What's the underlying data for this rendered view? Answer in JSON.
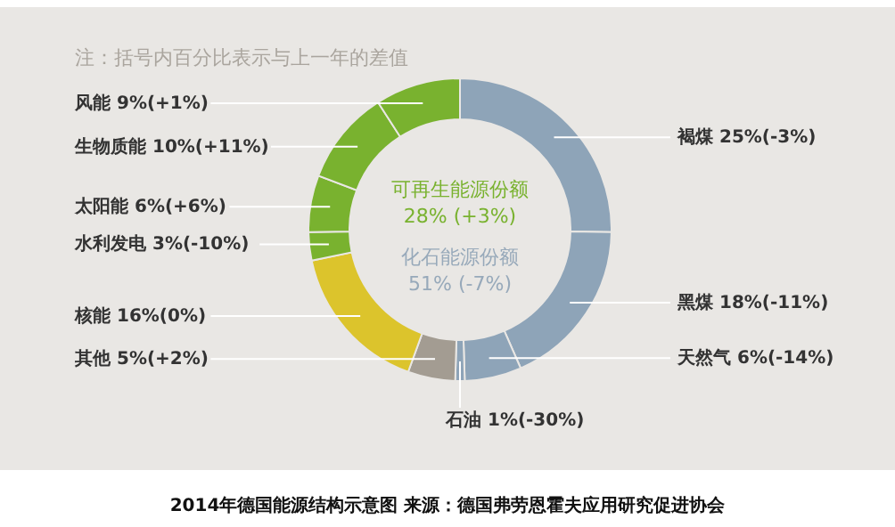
{
  "chart_data": {
    "type": "donut",
    "categories": [
      "褐煤",
      "黑煤",
      "天然气",
      "石油",
      "其他",
      "核能",
      "水利发电",
      "太阳能",
      "生物质能",
      "风能"
    ],
    "values": [
      25,
      18,
      6,
      1,
      5,
      16,
      3,
      6,
      10,
      9
    ],
    "value_labels": [
      "25%(-3%)",
      "18%(-11%)",
      "6%(-14%)",
      "1%(-30%)",
      "5%(+2%)",
      "16%(0%)",
      "3%(-10%)",
      "6%(+6%)",
      "10%(+11%)",
      "9%(+1%)"
    ],
    "colors": [
      "#8ea4b8",
      "#8ea4b8",
      "#8ea4b8",
      "#8ea4b8",
      "#a39c92",
      "#dcc42c",
      "#79b22f",
      "#79b22f",
      "#79b22f",
      "#79b22f"
    ],
    "annotations": [
      "注：括号内百分比表示与上一年的差值",
      "可再生能源份额\n28% (+3%)",
      "化石能源份额\n51% (-7%)",
      "2014年德国能源结构示意图    来源：德国弗劳恩霍夫应用研究促进协会"
    ]
  }
}
